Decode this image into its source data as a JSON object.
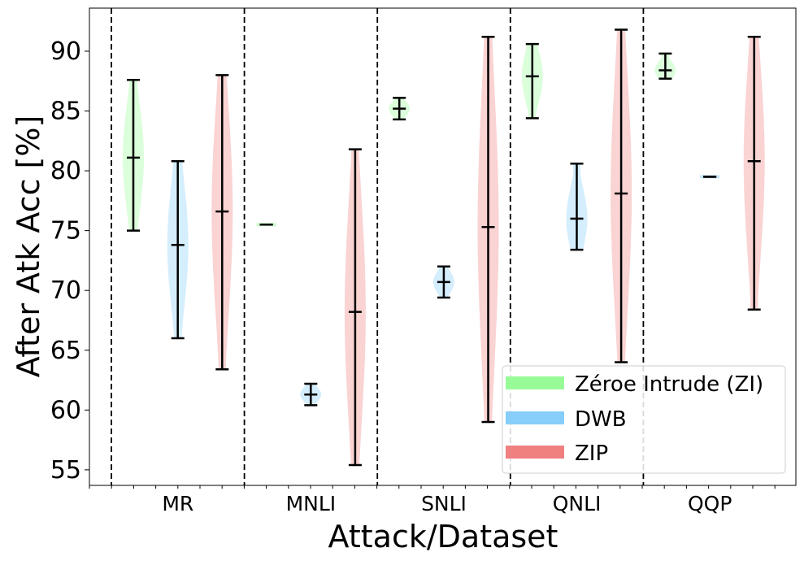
{
  "chart_data": {
    "type": "violin",
    "title": "",
    "xlabel": "Attack/Dataset",
    "ylabel": "After Atk Acc [%]",
    "ylim": [
      53.7,
      93.6
    ],
    "yticks": [
      55,
      60,
      65,
      70,
      75,
      80,
      85,
      90
    ],
    "categories": [
      "MR",
      "MNLI",
      "SNLI",
      "QNLI",
      "QQP"
    ],
    "legend_position": "lower-right",
    "series": [
      {
        "name": "Zéroe Intrude (ZI)",
        "color": "#98FB98",
        "values": [
          {
            "min": 75.0,
            "median": 81.1,
            "max": 87.6
          },
          {
            "min": 75.5,
            "median": 75.5,
            "max": 75.5
          },
          {
            "min": 84.3,
            "median": 85.2,
            "max": 86.1
          },
          {
            "min": 84.4,
            "median": 87.9,
            "max": 90.6
          },
          {
            "min": 87.7,
            "median": 88.4,
            "max": 89.8
          }
        ]
      },
      {
        "name": "DWB",
        "color": "#87CEFA",
        "values": [
          {
            "min": 66.0,
            "median": 73.8,
            "max": 80.8
          },
          {
            "min": 60.4,
            "median": 61.3,
            "max": 62.2
          },
          {
            "min": 69.4,
            "median": 70.7,
            "max": 72.0
          },
          {
            "min": 73.4,
            "median": 76.0,
            "max": 80.6
          },
          {
            "min": 79.5,
            "median": 79.5,
            "max": 79.5
          }
        ]
      },
      {
        "name": "ZIP",
        "color": "#F08080",
        "values": [
          {
            "min": 63.4,
            "median": 76.6,
            "max": 88.0
          },
          {
            "min": 55.4,
            "median": 68.2,
            "max": 81.8
          },
          {
            "min": 59.0,
            "median": 75.3,
            "max": 91.2
          },
          {
            "min": 64.0,
            "median": 78.1,
            "max": 91.8
          },
          {
            "min": 68.4,
            "median": 80.8,
            "max": 91.2
          }
        ]
      }
    ]
  }
}
